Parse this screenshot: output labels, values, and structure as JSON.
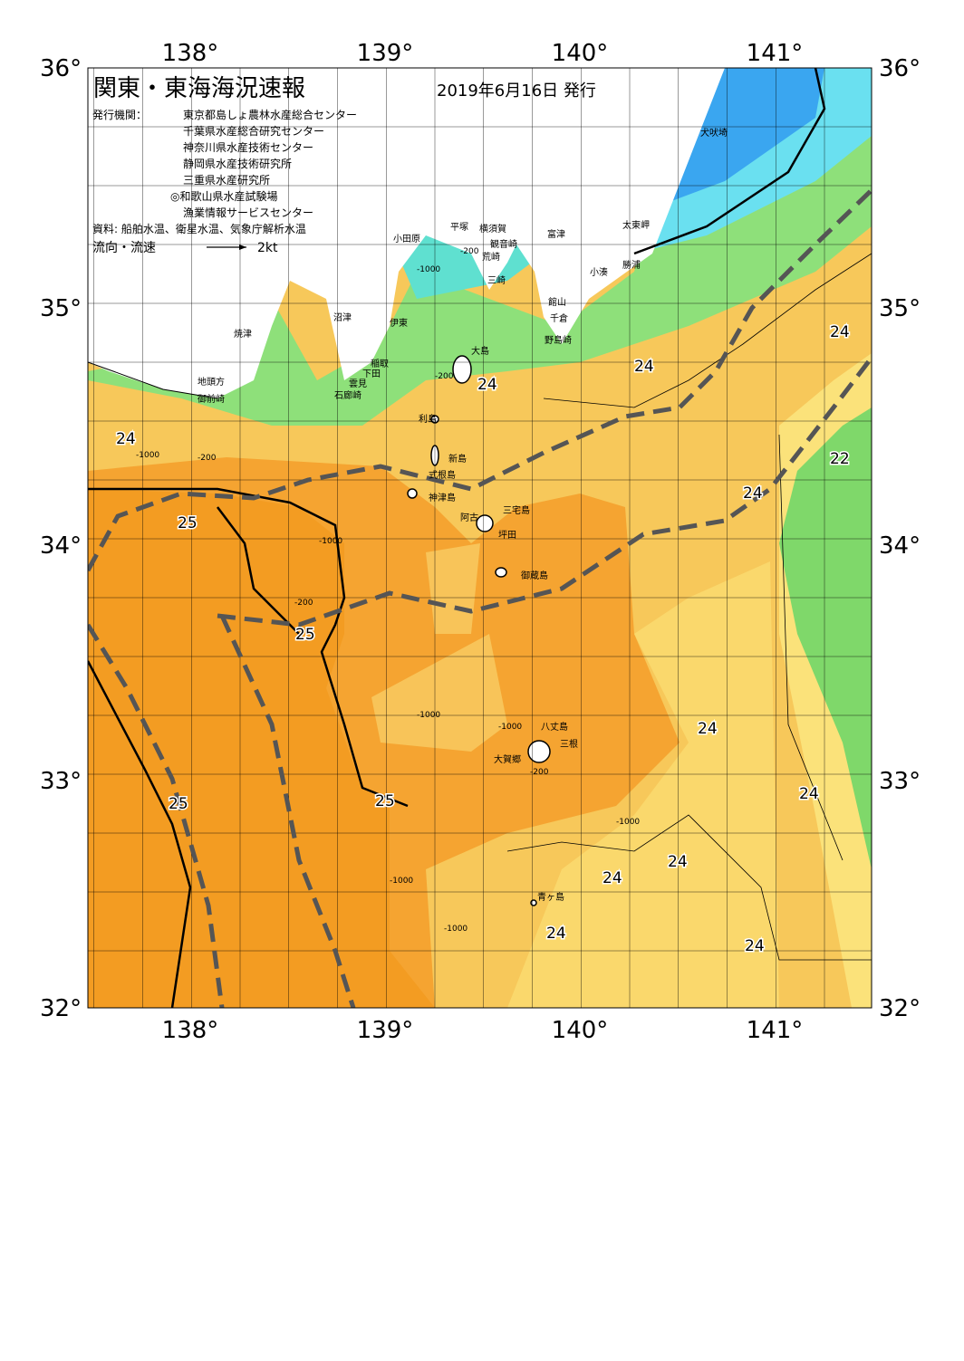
{
  "header": {
    "title": "関東・東海海況速報",
    "date": "2019年6月16日 発行",
    "issuer_label": "発行機関：",
    "issuers": [
      "東京都島しょ農林水産総合センター",
      "千葉県水産総合研究センター",
      "神奈川県水産技術センター",
      "静岡県水産技術研究所",
      "三重県水産研究所",
      "◎和歌山県水産試験場",
      "漁業情報サービスセンター"
    ],
    "source": "資料: 船舶水温、衛星水温、気象庁解析水温",
    "current_legend": "流向・流速",
    "current_scale": "2kt"
  },
  "map": {
    "lon_labels": [
      "138°",
      "139°",
      "140°",
      "141°"
    ],
    "lat_labels": [
      "36°",
      "35°",
      "34°",
      "33°",
      "32°"
    ],
    "places": [
      "犬吠埼",
      "太東岬",
      "勝浦",
      "小湊",
      "館山",
      "千倉",
      "野島崎",
      "富津",
      "観音崎",
      "横須賀",
      "荒崎",
      "三崎",
      "平塚",
      "小田原",
      "沼津",
      "伊東",
      "焼津",
      "稲取",
      "下田",
      "雲見",
      "石廊崎",
      "地頭方",
      "御前崎",
      "大島",
      "利島",
      "新島",
      "式根島",
      "神津島",
      "三宅島",
      "阿古",
      "坪田",
      "御蔵島",
      "八丈島",
      "三根",
      "大賀郷",
      "青ヶ島"
    ],
    "temperature_labels": [
      24,
      24,
      24,
      24,
      25,
      25,
      25,
      25,
      22,
      24,
      24,
      24,
      24,
      24,
      24,
      24
    ],
    "depth_labels": [
      "-1000",
      "-200",
      "-200",
      "-1000",
      "-200",
      "-1000",
      "-200",
      "-1000",
      "-1000",
      "-200",
      "-1000",
      "-1000",
      "-1000"
    ]
  }
}
